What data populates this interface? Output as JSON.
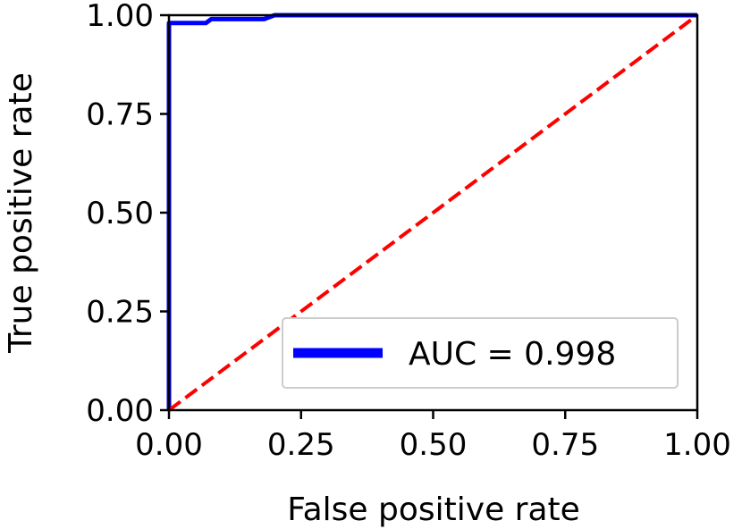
{
  "chart_data": {
    "type": "line",
    "xlabel": "False positive rate",
    "ylabel": "True positive rate",
    "xlim": [
      0,
      1
    ],
    "ylim": [
      0,
      1
    ],
    "xticks": [
      "0.00",
      "0.25",
      "0.50",
      "0.75",
      "1.00"
    ],
    "yticks": [
      "0.00",
      "0.25",
      "0.50",
      "0.75",
      "1.00"
    ],
    "grid": false,
    "legend_position": "lower right",
    "series": [
      {
        "name": "AUC = 0.998",
        "color": "#0000ff",
        "style": "solid",
        "x": [
          0.0,
          0.0,
          0.0,
          0.0,
          0.0,
          0.005,
          0.01,
          0.02,
          0.03,
          0.05,
          0.07,
          0.08,
          0.12,
          0.18,
          0.19,
          0.2,
          0.3,
          0.5,
          0.7,
          1.0
        ],
        "y": [
          0.0,
          0.5,
          0.9,
          0.97,
          0.98,
          0.98,
          0.98,
          0.98,
          0.98,
          0.98,
          0.98,
          0.99,
          0.99,
          0.99,
          0.995,
          1.0,
          1.0,
          1.0,
          1.0,
          1.0
        ]
      },
      {
        "color": "#ff0000",
        "style": "dashed",
        "x": [
          0,
          1
        ],
        "y": [
          0,
          1
        ]
      }
    ]
  }
}
